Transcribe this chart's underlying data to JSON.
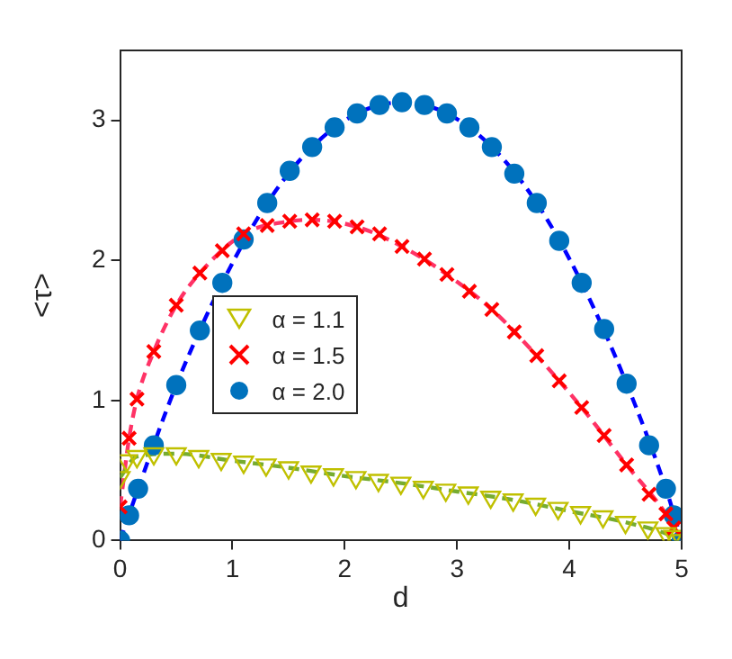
{
  "chart_data": {
    "type": "scatter",
    "xlabel": "d",
    "ylabel": "<τ>",
    "xlim": [
      0,
      5
    ],
    "ylim": [
      0,
      3.5
    ],
    "xticks": [
      0,
      1,
      2,
      3,
      4,
      5
    ],
    "yticks": [
      0,
      1,
      2,
      3
    ],
    "grid": false,
    "legend": "center left",
    "series": [
      {
        "name": "α = 1.1",
        "type": "scatter",
        "marker": "triangle",
        "color": "#c0c000",
        "x": [
          0,
          0.06,
          0.15,
          0.3,
          0.5,
          0.7,
          0.9,
          1.1,
          1.3,
          1.5,
          1.7,
          1.9,
          2.1,
          2.3,
          2.5,
          2.7,
          2.9,
          3.1,
          3.3,
          3.5,
          3.7,
          3.9,
          4.1,
          4.3,
          4.5,
          4.7,
          4.86,
          4.93,
          5
        ],
        "values": [
          0.45,
          0.57,
          0.6,
          0.62,
          0.62,
          0.6,
          0.58,
          0.56,
          0.54,
          0.52,
          0.49,
          0.47,
          0.45,
          0.43,
          0.41,
          0.38,
          0.36,
          0.34,
          0.31,
          0.29,
          0.26,
          0.23,
          0.2,
          0.17,
          0.13,
          0.09,
          0.05,
          0.03,
          0
        ]
      },
      {
        "name": "α = 1.5",
        "type": "scatter",
        "marker": "cross",
        "color": "#ff0000",
        "x": [
          0,
          0.08,
          0.15,
          0.3,
          0.5,
          0.71,
          0.91,
          1.1,
          1.31,
          1.51,
          1.71,
          1.91,
          2.11,
          2.31,
          2.51,
          2.71,
          2.91,
          3.11,
          3.31,
          3.51,
          3.71,
          3.91,
          4.11,
          4.31,
          4.51,
          4.71,
          4.86,
          4.93
        ],
        "values": [
          0.24,
          0.73,
          1.01,
          1.35,
          1.68,
          1.91,
          2.07,
          2.19,
          2.25,
          2.28,
          2.29,
          2.28,
          2.24,
          2.19,
          2.1,
          2.01,
          1.9,
          1.78,
          1.65,
          1.49,
          1.32,
          1.14,
          0.95,
          0.75,
          0.54,
          0.33,
          0.19,
          0.09
        ]
      },
      {
        "name": "α = 2.0",
        "type": "scatter",
        "marker": "circle",
        "color": "#0072bd",
        "x": [
          0,
          0.08,
          0.16,
          0.3,
          0.5,
          0.71,
          0.91,
          1.1,
          1.31,
          1.51,
          1.71,
          1.91,
          2.11,
          2.31,
          2.51,
          2.71,
          2.91,
          3.11,
          3.31,
          3.51,
          3.71,
          3.91,
          4.11,
          4.31,
          4.51,
          4.71,
          4.86,
          4.93,
          5
        ],
        "values": [
          0,
          0.18,
          0.37,
          0.68,
          1.11,
          1.5,
          1.84,
          2.15,
          2.41,
          2.64,
          2.81,
          2.95,
          3.05,
          3.11,
          3.13,
          3.11,
          3.05,
          2.95,
          2.81,
          2.62,
          2.41,
          2.14,
          1.84,
          1.51,
          1.12,
          0.68,
          0.37,
          0.18,
          0
        ]
      },
      {
        "type": "line",
        "marker": "none",
        "line_style": "dashed",
        "color": "#77ac30",
        "x": [
          0,
          0.15,
          0.5,
          1,
          1.5,
          2,
          2.5,
          3,
          3.5,
          4,
          4.5,
          4.86,
          5
        ],
        "values": [
          0.45,
          0.6,
          0.62,
          0.57,
          0.52,
          0.46,
          0.41,
          0.35,
          0.29,
          0.21,
          0.13,
          0.05,
          0
        ]
      },
      {
        "type": "line",
        "marker": "none",
        "line_style": "dashed",
        "color": "#ff3366",
        "x": [
          0,
          0.08,
          0.15,
          0.3,
          0.5,
          0.71,
          1.1,
          1.51,
          1.71,
          2.11,
          2.51,
          2.91,
          3.31,
          3.71,
          4.11,
          4.51,
          4.86,
          5
        ],
        "values": [
          0.24,
          0.73,
          1.01,
          1.35,
          1.68,
          1.91,
          2.19,
          2.28,
          2.29,
          2.24,
          2.1,
          1.9,
          1.65,
          1.32,
          0.95,
          0.54,
          0.19,
          0
        ]
      },
      {
        "type": "line",
        "marker": "none",
        "line_style": "dashed",
        "color": "#0000ff",
        "x": [
          0,
          0.16,
          0.5,
          0.91,
          1.31,
          1.71,
          2.11,
          2.51,
          2.91,
          3.31,
          3.71,
          4.11,
          4.51,
          4.86,
          5
        ],
        "values": [
          0,
          0.37,
          1.11,
          1.84,
          2.41,
          2.81,
          3.05,
          3.13,
          3.05,
          2.81,
          2.41,
          1.84,
          1.12,
          0.37,
          0
        ]
      }
    ]
  }
}
